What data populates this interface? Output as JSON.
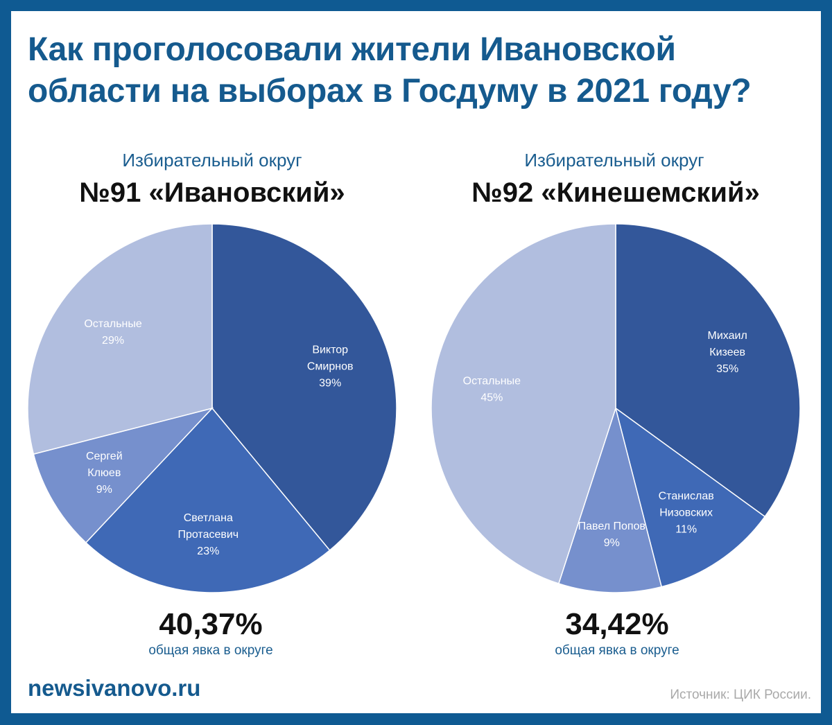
{
  "title": "Как проголосовали жители Ивановской области на выборах в Госдуму в 2021 году?",
  "site": "newsivanovo.ru",
  "source": "Источник: ЦИК России.",
  "chart_data": [
    {
      "type": "pie",
      "subtitle": "Избирательный округ",
      "title": "№91 «Ивановский»",
      "slices": [
        {
          "label": [
            "Виктор",
            "Смирнов",
            "39%"
          ],
          "value": 39,
          "color": "#33579a"
        },
        {
          "label": [
            "Светлана",
            "Протасевич",
            "23%"
          ],
          "value": 23,
          "color": "#3f69b6"
        },
        {
          "label": [
            "Сергей",
            "Клюев",
            "9%"
          ],
          "value": 9,
          "color": "#7690cd"
        },
        {
          "label": [
            "Остальные",
            "29%"
          ],
          "value": 29,
          "color": "#b1bedf"
        }
      ],
      "turnout": "40,37%",
      "turnout_caption": "общая явка в округе"
    },
    {
      "type": "pie",
      "subtitle": "Избирательный округ",
      "title": "№92 «Кинешемский»",
      "slices": [
        {
          "label": [
            "Михаил",
            "Кизеев",
            "35%"
          ],
          "value": 35,
          "color": "#33579a"
        },
        {
          "label": [
            "Станислав",
            "Низовских",
            "11%"
          ],
          "value": 11,
          "color": "#3f69b6"
        },
        {
          "label": [
            "Павел Попов",
            "9%"
          ],
          "value": 9,
          "color": "#7690cd"
        },
        {
          "label": [
            "Остальные",
            "45%"
          ],
          "value": 45,
          "color": "#b1bedf"
        }
      ],
      "turnout": "34,42%",
      "turnout_caption": "общая явка в округе"
    }
  ]
}
